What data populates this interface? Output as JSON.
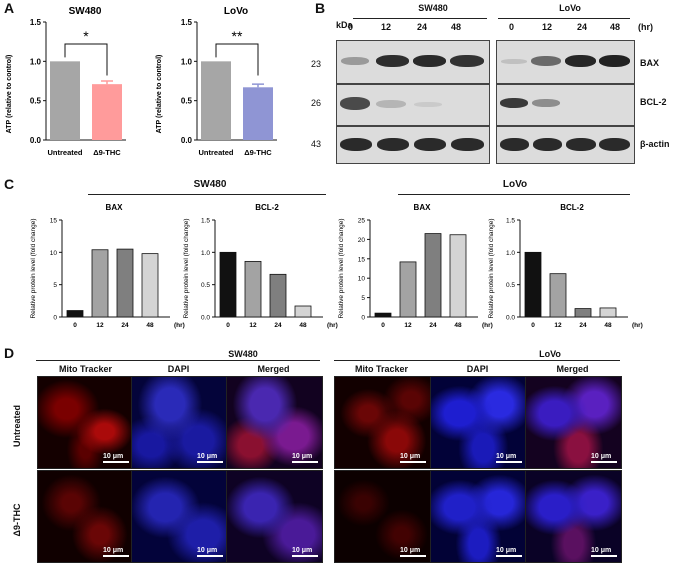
{
  "panel_labels": {
    "a": "A",
    "b": "B",
    "c": "C",
    "d": "D"
  },
  "panel_a": {
    "ylabel": "ATP (relative to control)",
    "yticks": [
      "0.0",
      "0.5",
      "1.0",
      "1.5"
    ],
    "charts": [
      {
        "title": "SW480",
        "categories": [
          "Untreated",
          "Δ9-THC"
        ],
        "values": [
          1.0,
          0.71
        ],
        "errors": [
          0,
          0.04
        ],
        "sig": "*",
        "colors": [
          "#a6a6a6",
          "#ff9b9b"
        ]
      },
      {
        "title": "LoVo",
        "categories": [
          "Untreated",
          "Δ9-THC"
        ],
        "values": [
          1.0,
          0.67
        ],
        "errors": [
          0,
          0.04
        ],
        "sig": "**",
        "colors": [
          "#a6a6a6",
          "#8f95d4"
        ]
      }
    ]
  },
  "panel_b": {
    "unit_label": "kDa",
    "time_unit": "(hr)",
    "lines": [
      "SW480",
      "LoVo"
    ],
    "timepoints": [
      "0",
      "12",
      "24",
      "48"
    ],
    "markers": [
      "23",
      "26",
      "43"
    ],
    "proteins": [
      "BAX",
      "BCL-2",
      "β-actin"
    ]
  },
  "panel_c": {
    "group_titles": [
      "SW480",
      "LoVo"
    ],
    "ylabel": "Relative protein level (fold change)",
    "xunit": "(hr)"
  },
  "chart_data": [
    {
      "type": "bar",
      "title": "SW480 BAX",
      "categories": [
        "0",
        "12",
        "24",
        "48"
      ],
      "values": [
        1.0,
        10.4,
        10.5,
        9.8
      ],
      "ylim": [
        0,
        15
      ],
      "yticks": [
        "0",
        "5",
        "10",
        "15"
      ],
      "ylabel": "Relative protein level (fold change)",
      "colors": [
        "#111111",
        "#a3a3a3",
        "#7f7f7f",
        "#d4d4d4"
      ]
    },
    {
      "type": "bar",
      "title": "SW480 BCL-2",
      "categories": [
        "0",
        "12",
        "24",
        "48"
      ],
      "values": [
        1.0,
        0.86,
        0.66,
        0.17
      ],
      "ylim": [
        0,
        1.5
      ],
      "yticks": [
        "0.0",
        "0.5",
        "1.0",
        "1.5"
      ],
      "ylabel": "Relative protein level (fold change)",
      "colors": [
        "#111111",
        "#a3a3a3",
        "#7f7f7f",
        "#d4d4d4"
      ]
    },
    {
      "type": "bar",
      "title": "LoVo BAX",
      "categories": [
        "0",
        "12",
        "24",
        "48"
      ],
      "values": [
        1.0,
        14.2,
        21.5,
        21.2
      ],
      "ylim": [
        0,
        25
      ],
      "yticks": [
        "0",
        "5",
        "10",
        "15",
        "20",
        "25"
      ],
      "ylabel": "Relative protein level (fold change)",
      "colors": [
        "#111111",
        "#a3a3a3",
        "#7f7f7f",
        "#d4d4d4"
      ]
    },
    {
      "type": "bar",
      "title": "LoVo BCL-2",
      "categories": [
        "0",
        "12",
        "24",
        "48"
      ],
      "values": [
        1.0,
        0.67,
        0.13,
        0.14
      ],
      "ylim": [
        0,
        1.5
      ],
      "yticks": [
        "0.0",
        "0.5",
        "1.0",
        "1.5"
      ],
      "ylabel": "Relative protein level (fold change)",
      "colors": [
        "#111111",
        "#a3a3a3",
        "#7f7f7f",
        "#d4d4d4"
      ]
    }
  ],
  "panel_d": {
    "cell_lines": [
      "SW480",
      "LoVo"
    ],
    "columns": [
      "Mito Tracker",
      "DAPI",
      "Merged"
    ],
    "rows": [
      "Untreated",
      "Δ9-THC"
    ],
    "scale_bar": "10 μm"
  }
}
